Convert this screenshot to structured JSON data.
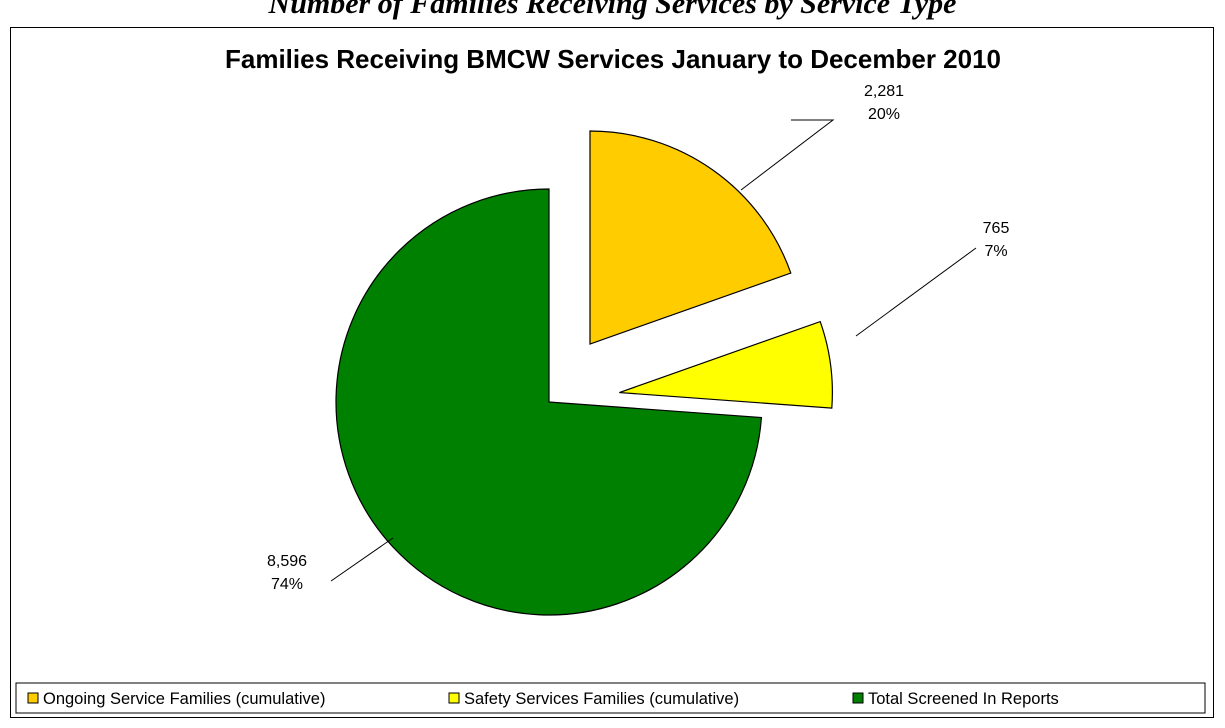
{
  "page": {
    "heading_fragment": "Number of Families Receiving Services by Service Type"
  },
  "chart_data": {
    "type": "pie",
    "title": "Families Receiving BMCW Services January to December 2010",
    "legend_position": "bottom",
    "slices": [
      {
        "name": "Ongoing Service Families (cumulative)",
        "value": 2281,
        "value_label": "2,281",
        "percent_label": "20%",
        "color": "#FFCC00",
        "exploded": true
      },
      {
        "name": "Safety Services Families (cumulative)",
        "value": 765,
        "value_label": "765",
        "percent_label": "7%",
        "color": "#FFFF00",
        "exploded": true
      },
      {
        "name": "Total Screened In Reports",
        "value": 8596,
        "value_label": "8,596",
        "percent_label": "74%",
        "color": "#008000",
        "exploded": false
      }
    ]
  }
}
